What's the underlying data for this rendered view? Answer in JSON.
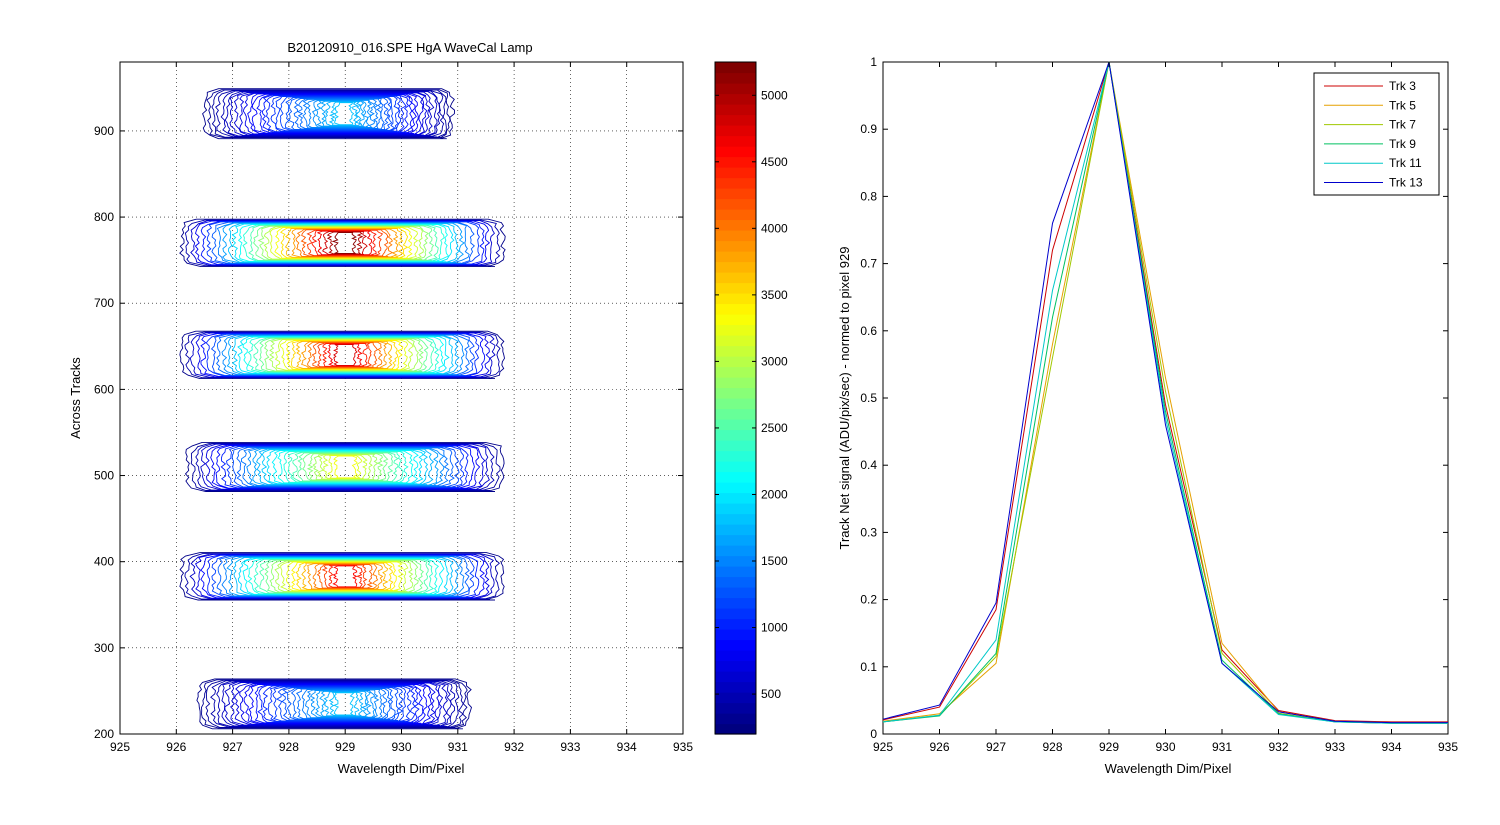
{
  "chart_data": [
    {
      "type": "contour",
      "title": "B20120910_016.SPE  HgA WaveCal Lamp",
      "xlabel": "Wavelength Dim/Pixel",
      "ylabel": "Across Tracks",
      "xlim": [
        925,
        935
      ],
      "ylim": [
        200,
        980
      ],
      "xticks": [
        925,
        926,
        927,
        928,
        929,
        930,
        931,
        932,
        933,
        934,
        935
      ],
      "yticks": [
        200,
        300,
        400,
        500,
        600,
        700,
        800,
        900
      ],
      "grid": true,
      "colorbar": {
        "colormap": "jet",
        "range": [
          200,
          5250
        ],
        "ticks": [
          500,
          1000,
          1500,
          2000,
          2500,
          3000,
          3500,
          4000,
          4500,
          5000
        ]
      },
      "blobs": [
        {
          "center_x": 929,
          "track_y": 920,
          "y_lo": 892,
          "y_hi": 950,
          "x_lo": 926.5,
          "x_hi": 930.9,
          "peak": 1800
        },
        {
          "center_x": 929,
          "track_y": 770,
          "y_lo": 745,
          "y_hi": 800,
          "x_lo": 926.1,
          "x_hi": 931.8,
          "peak": 5200
        },
        {
          "center_x": 929,
          "track_y": 640,
          "y_lo": 615,
          "y_hi": 670,
          "x_lo": 926.1,
          "x_hi": 931.8,
          "peak": 4800
        },
        {
          "center_x": 929,
          "track_y": 510,
          "y_lo": 483,
          "y_hi": 540,
          "x_lo": 926.2,
          "x_hi": 931.8,
          "peak": 3300
        },
        {
          "center_x": 929,
          "track_y": 383,
          "y_lo": 355,
          "y_hi": 410,
          "x_lo": 926.1,
          "x_hi": 931.8,
          "peak": 4600
        },
        {
          "center_x": 929,
          "track_y": 235,
          "y_lo": 207,
          "y_hi": 265,
          "x_lo": 926.4,
          "x_hi": 931.2,
          "peak": 1800
        }
      ]
    },
    {
      "type": "line",
      "title": "",
      "xlabel": "Wavelength Dim/Pixel",
      "ylabel": "Track Net signal (ADU/pix/sec) - normed to pixel 929",
      "xlim": [
        925,
        935
      ],
      "ylim": [
        0,
        1
      ],
      "xticks": [
        925,
        926,
        927,
        928,
        929,
        930,
        931,
        932,
        933,
        934,
        935
      ],
      "yticks": [
        0,
        0.1,
        0.2,
        0.3,
        0.4,
        0.5,
        0.6,
        0.7,
        0.8,
        0.9,
        1
      ],
      "grid": true,
      "legend_position": "top-right",
      "x": [
        925,
        926,
        927,
        928,
        929,
        930,
        931,
        932,
        933,
        934,
        935
      ],
      "series": [
        {
          "name": "Trk 3",
          "color": "#cc0000",
          "values": [
            0.021,
            0.04,
            0.185,
            0.72,
            1.0,
            0.49,
            0.125,
            0.035,
            0.02,
            0.018,
            0.018
          ]
        },
        {
          "name": "Trk 5",
          "color": "#e6a000",
          "values": [
            0.019,
            0.03,
            0.105,
            0.58,
            1.0,
            0.53,
            0.135,
            0.033,
            0.019,
            0.017,
            0.017
          ]
        },
        {
          "name": "Trk 7",
          "color": "#a0c800",
          "values": [
            0.018,
            0.028,
            0.115,
            0.56,
            1.0,
            0.51,
            0.12,
            0.031,
            0.018,
            0.016,
            0.016
          ]
        },
        {
          "name": "Trk 9",
          "color": "#00c060",
          "values": [
            0.018,
            0.027,
            0.12,
            0.62,
            1.0,
            0.48,
            0.11,
            0.03,
            0.018,
            0.016,
            0.016
          ]
        },
        {
          "name": "Trk 11",
          "color": "#00c8c8",
          "values": [
            0.018,
            0.028,
            0.14,
            0.66,
            1.0,
            0.47,
            0.105,
            0.029,
            0.018,
            0.016,
            0.016
          ]
        },
        {
          "name": "Trk 13",
          "color": "#0000cc",
          "values": [
            0.022,
            0.043,
            0.195,
            0.76,
            1.0,
            0.46,
            0.105,
            0.033,
            0.019,
            0.017,
            0.017
          ]
        }
      ]
    }
  ]
}
